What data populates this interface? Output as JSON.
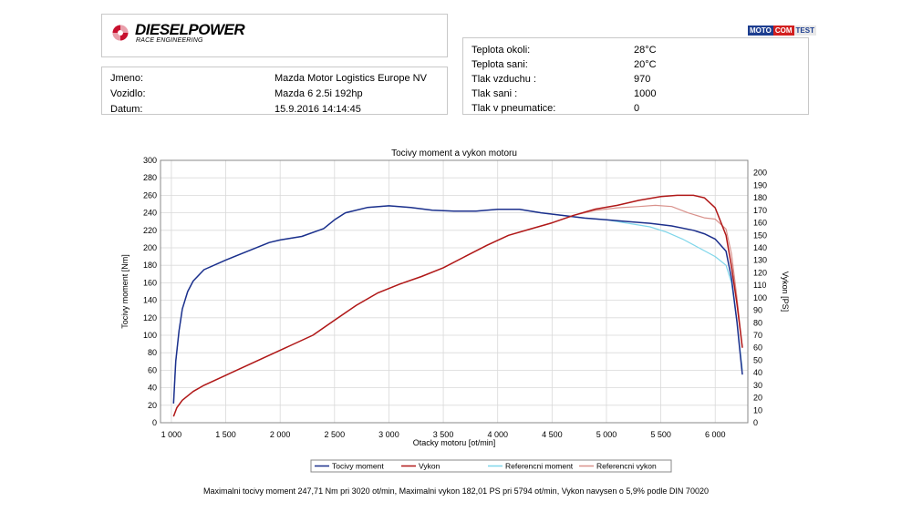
{
  "brand": {
    "logo_text": "DIESELPOWER",
    "logo_sub": "RACE ENGINEERING",
    "badge": [
      "MOTO",
      "COM",
      "TEST"
    ]
  },
  "vehicle": [
    {
      "label": "Jmeno:",
      "value": "Mazda Motor Logistics Europe NV"
    },
    {
      "label": "Vozidlo:",
      "value": "Mazda 6 2.5i 192hp"
    },
    {
      "label": "Datum:",
      "value": "15.9.2016 14:14:45"
    }
  ],
  "conditions": [
    {
      "label": "Teplota okoli:",
      "value": "28°C"
    },
    {
      "label": "Teplota sani:",
      "value": "20°C"
    },
    {
      "label": "Tlak vzduchu :",
      "value": "970"
    },
    {
      "label": "Tlak sani :",
      "value": "1000"
    },
    {
      "label": "Tlak v pneumatice:",
      "value": "0"
    }
  ],
  "footer": "Maximalni tocivy moment 247,71 Nm pri 3020 ot/min,  Maximalni vykon 182,01 PS pri 5794 ot/min,  Vykon navysen o 5,9% podle DIN 70020",
  "chart_data": {
    "type": "line",
    "title": "Tocivy moment a vykon motoru",
    "xlabel": "Otacky motoru [ot/min]",
    "ylabel_left": "Tocivy moment [Nm]",
    "ylabel_right": "Vykon [PS]",
    "xlim": [
      900,
      6300
    ],
    "ylim_left": [
      0,
      300
    ],
    "ylim_right": [
      0,
      210
    ],
    "x_ticks": [
      1000,
      1500,
      2000,
      2500,
      3000,
      3500,
      4000,
      4500,
      5000,
      5500,
      6000
    ],
    "x_tick_labels": [
      "1 000",
      "1 500",
      "2 000",
      "2 500",
      "3 000",
      "3 500",
      "4 000",
      "4 500",
      "5 000",
      "5 500",
      "6 000"
    ],
    "y_left_ticks": [
      0,
      20,
      40,
      60,
      80,
      100,
      120,
      140,
      160,
      180,
      200,
      220,
      240,
      260,
      280,
      300
    ],
    "y_right_ticks": [
      0,
      10,
      20,
      30,
      40,
      50,
      60,
      70,
      80,
      90,
      100,
      110,
      120,
      130,
      140,
      150,
      160,
      170,
      180,
      190,
      200
    ],
    "grid": true,
    "legend_position": "bottom",
    "series": [
      {
        "name": "Tocivy moment",
        "axis": "left",
        "color": "#1c2f8c",
        "width": 1.5,
        "x": [
          1020,
          1040,
          1070,
          1100,
          1150,
          1200,
          1300,
          1500,
          1700,
          1900,
          2000,
          2200,
          2400,
          2500,
          2600,
          2800,
          3000,
          3200,
          3400,
          3600,
          3800,
          4000,
          4200,
          4400,
          4600,
          4800,
          5000,
          5200,
          5400,
          5600,
          5800,
          5900,
          6000,
          6100,
          6150,
          6200,
          6220,
          6250
        ],
        "y": [
          22,
          70,
          105,
          130,
          150,
          162,
          175,
          186,
          196,
          206,
          209,
          213,
          222,
          232,
          240,
          246,
          248,
          246,
          243,
          242,
          242,
          244,
          244,
          240,
          237,
          234,
          232,
          230,
          228,
          225,
          220,
          216,
          210,
          196,
          165,
          115,
          90,
          55
        ]
      },
      {
        "name": "Vykon",
        "axis": "right",
        "color": "#b01818",
        "width": 1.5,
        "x": [
          1020,
          1050,
          1100,
          1200,
          1300,
          1500,
          1700,
          1900,
          2100,
          2300,
          2500,
          2700,
          2900,
          3100,
          3300,
          3500,
          3700,
          3900,
          4100,
          4300,
          4500,
          4700,
          4900,
          5100,
          5300,
          5500,
          5650,
          5800,
          5900,
          6000,
          6100,
          6150,
          6200,
          6250
        ],
        "y": [
          5,
          12,
          18,
          25,
          30,
          38,
          46,
          54,
          62,
          70,
          82,
          94,
          104,
          111,
          117,
          124,
          133,
          142,
          150,
          155,
          160,
          166,
          171,
          174,
          178,
          181,
          182,
          182,
          180,
          172,
          150,
          125,
          95,
          60
        ]
      },
      {
        "name": "Referencni moment",
        "axis": "left",
        "color": "#7fd6ea",
        "width": 1.2,
        "x": [
          1020,
          1040,
          1070,
          1100,
          1150,
          1200,
          1300,
          1500,
          1700,
          1900,
          2000,
          2200,
          2400,
          2500,
          2600,
          2800,
          3000,
          3200,
          3400,
          3600,
          3800,
          4000,
          4200,
          4400,
          4600,
          4800,
          5000,
          5200,
          5400,
          5550,
          5700,
          5850,
          6000,
          6100,
          6150,
          6200,
          6250
        ],
        "y": [
          22,
          70,
          105,
          130,
          150,
          162,
          175,
          186,
          196,
          206,
          209,
          213,
          222,
          232,
          240,
          246,
          248,
          246,
          243,
          242,
          242,
          244,
          244,
          240,
          237,
          234,
          232,
          228,
          224,
          218,
          210,
          200,
          190,
          180,
          160,
          115,
          60
        ]
      },
      {
        "name": "Referencni vykon",
        "axis": "right",
        "color": "#d9928c",
        "width": 1.2,
        "x": [
          1020,
          1050,
          1100,
          1200,
          1300,
          1500,
          1700,
          1900,
          2100,
          2300,
          2500,
          2700,
          2900,
          3100,
          3300,
          3500,
          3700,
          3900,
          4100,
          4300,
          4500,
          4700,
          4900,
          5100,
          5300,
          5450,
          5600,
          5750,
          5900,
          6000,
          6100,
          6150,
          6200,
          6250
        ],
        "y": [
          5,
          12,
          18,
          25,
          30,
          38,
          46,
          54,
          62,
          70,
          82,
          94,
          104,
          111,
          117,
          124,
          133,
          142,
          150,
          155,
          160,
          166,
          170,
          172,
          173,
          174,
          173,
          168,
          164,
          163,
          155,
          135,
          100,
          60
        ]
      }
    ]
  }
}
